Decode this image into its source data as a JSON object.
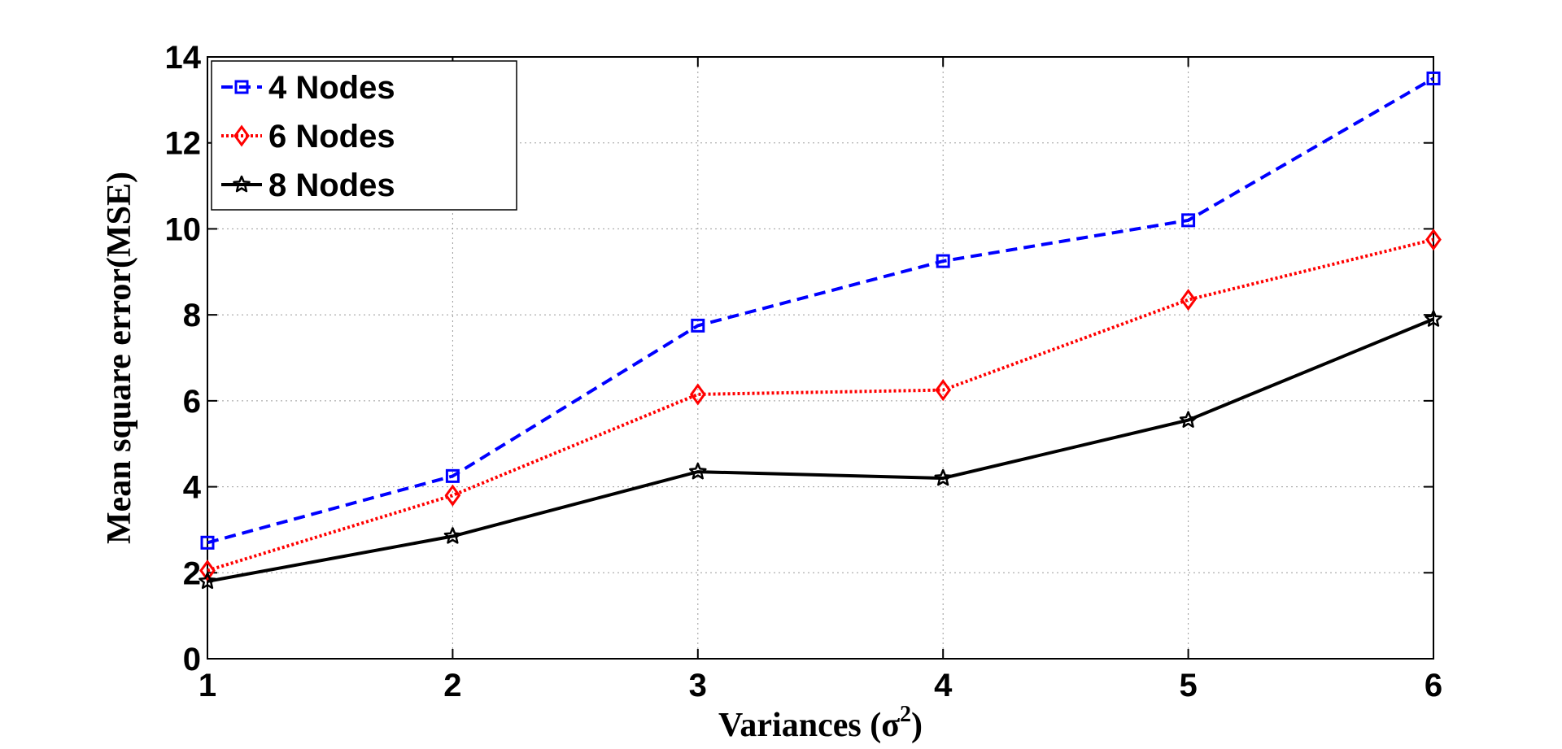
{
  "chart_data": {
    "type": "line",
    "title": "",
    "xlabel_main": "Variances (σ",
    "xlabel_sup": "2",
    "xlabel_close": ")",
    "ylabel": "Mean square error(MSE)",
    "x": [
      1,
      2,
      3,
      4,
      5,
      6
    ],
    "xlim": [
      1,
      6
    ],
    "ylim": [
      0,
      14
    ],
    "xticks": [
      "1",
      "2",
      "3",
      "4",
      "5",
      "6"
    ],
    "yticks": [
      "0",
      "2",
      "4",
      "6",
      "8",
      "10",
      "12",
      "14"
    ],
    "grid": true,
    "legend_position": "top-left",
    "series": [
      {
        "name": "4 Nodes",
        "values": [
          2.7,
          4.25,
          7.75,
          9.25,
          10.2,
          13.5
        ],
        "color": "#0000ff",
        "dash": "dashed",
        "marker": "square"
      },
      {
        "name": "6 Nodes",
        "values": [
          2.05,
          3.8,
          6.15,
          6.25,
          8.35,
          9.75
        ],
        "color": "#ff0000",
        "dash": "dotted",
        "marker": "diamond"
      },
      {
        "name": "8 Nodes",
        "values": [
          1.8,
          2.85,
          4.35,
          4.2,
          5.55,
          7.9
        ],
        "color": "#000000",
        "dash": "solid",
        "marker": "star"
      }
    ]
  }
}
